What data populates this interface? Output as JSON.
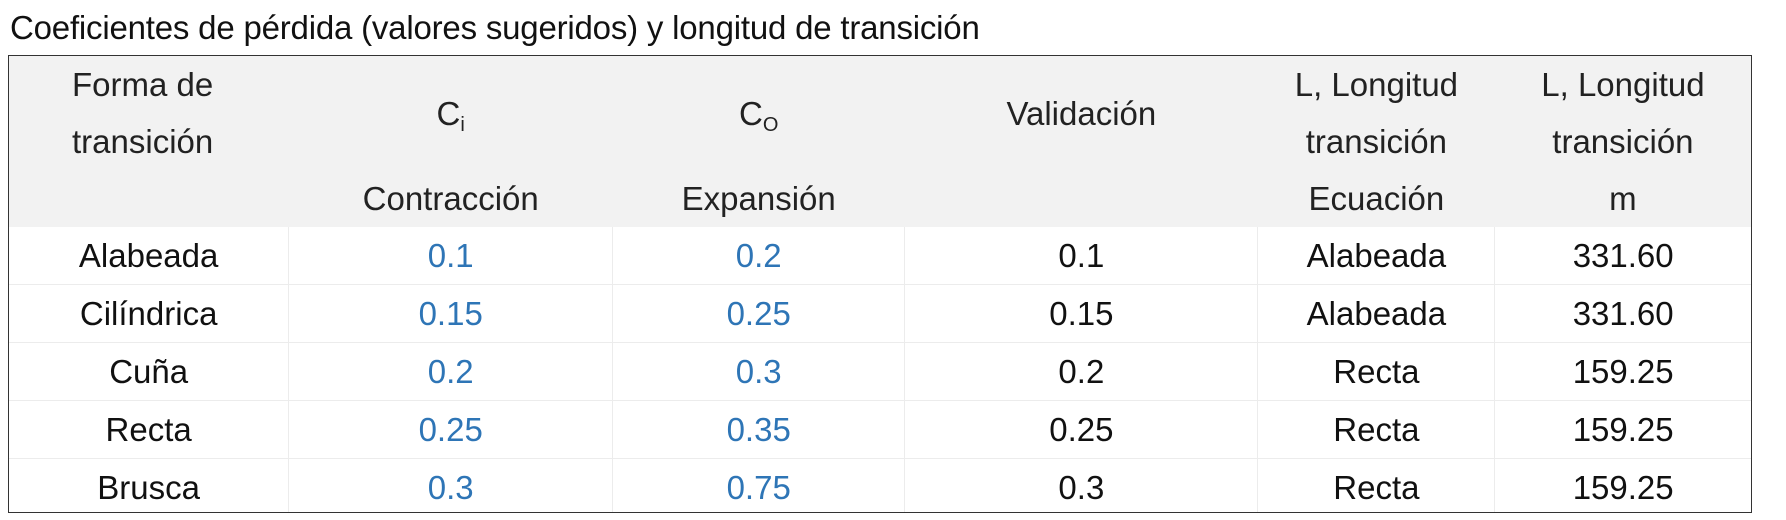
{
  "title": "Coeficientes de pérdida (valores sugeridos) y longitud de transición",
  "header": {
    "col1": {
      "line1": "Forma de",
      "line2": "transición"
    },
    "col2": {
      "symbol": "C",
      "subscript": "i",
      "label": "Contracción"
    },
    "col3": {
      "symbol": "C",
      "subscript": "O",
      "label": "Expansión"
    },
    "col4": {
      "label": "Validación"
    },
    "col5": {
      "line1": "L, Longitud",
      "line2": "transición",
      "line3": "Ecuación"
    },
    "col6": {
      "line1": "L, Longitud",
      "line2": "transición",
      "line3": "m"
    }
  },
  "rows": [
    {
      "forma": "Alabeada",
      "ci": "0.1",
      "co": "0.2",
      "validacion": "0.1",
      "ecuacion": "Alabeada",
      "longitud": "331.60"
    },
    {
      "forma": "Cilíndrica",
      "ci": "0.15",
      "co": "0.25",
      "validacion": "0.15",
      "ecuacion": "Alabeada",
      "longitud": "331.60"
    },
    {
      "forma": "Cuña",
      "ci": "0.2",
      "co": "0.3",
      "validacion": "0.2",
      "ecuacion": "Recta",
      "longitud": "159.25"
    },
    {
      "forma": "Recta",
      "ci": "0.25",
      "co": "0.35",
      "validacion": "0.25",
      "ecuacion": "Recta",
      "longitud": "159.25"
    },
    {
      "forma": "Brusca",
      "ci": "0.3",
      "co": "0.75",
      "validacion": "0.3",
      "ecuacion": "Recta",
      "longitud": "159.25"
    }
  ],
  "colors": {
    "input_values": "#2e75b6",
    "header_bg": "#f2f2f2",
    "text": "#111111"
  }
}
